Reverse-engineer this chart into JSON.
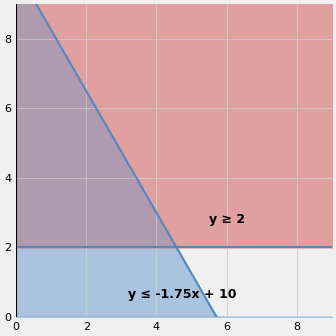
{
  "xlim": [
    0,
    9
  ],
  "ylim": [
    0,
    9
  ],
  "xticks": [
    0,
    2,
    4,
    6,
    8
  ],
  "yticks": [
    0,
    2,
    4,
    6,
    8
  ],
  "line1_slope": -1.75,
  "line1_intercept": 10,
  "line2_y": 2,
  "label1": "y ≤ -1.75x + 10",
  "label2": "y ≥ 2",
  "color_blue": "#aac4e0",
  "color_red": "#e0a0a0",
  "color_overlap": "#b09ab0",
  "line_color": "#5588bb",
  "background_color": "#f0f0f0",
  "grid_color": "#cccccc",
  "figsize": [
    3.36,
    3.36
  ],
  "dpi": 100
}
